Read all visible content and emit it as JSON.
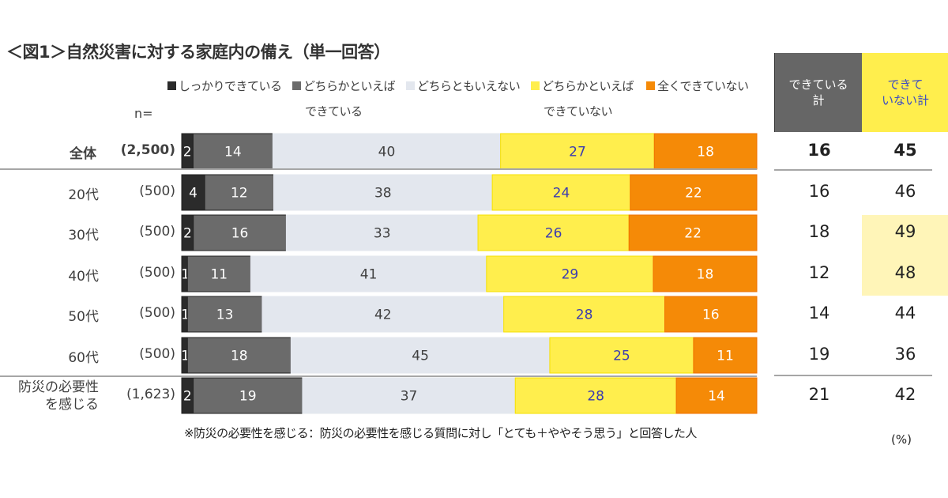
{
  "chart_data": {
    "type": "bar",
    "orientation": "horizontal-stacked-100",
    "title": "＜図1＞自然災害に対する家庭内の備え（単一回答）",
    "n_label": "n=",
    "unit_label": "(%)",
    "note": "※防災の必要性を感じる：防災の必要性を感じる質問に対し「とても＋ややそう思う」と回答した人",
    "legend_position": "top",
    "series": [
      {
        "name": "しっかりできている",
        "name_line2": "",
        "color": "#2b2b2b",
        "label_color": "#ffffff"
      },
      {
        "name": "どちらかといえば",
        "name_line2": "できている",
        "color": "#6b6b6b",
        "label_color": "#ffffff"
      },
      {
        "name": "どちらともいえない",
        "name_line2": "",
        "color": "#e3e7ee",
        "label_color": "#404040"
      },
      {
        "name": "どちらかといえば",
        "name_line2": "できていない",
        "color": "#ffee4d",
        "label_color": "#3b3bb0"
      },
      {
        "name": "全くできていない",
        "name_line2": "",
        "color": "#f58a07",
        "label_color": "#ffffff"
      }
    ],
    "rows": [
      {
        "label": "全体",
        "n": "(2,500)",
        "bold": true,
        "values": [
          2,
          14,
          40,
          27,
          18
        ],
        "done_total": 16,
        "not_done_total": 45
      },
      {
        "label": "20代",
        "n": "(500)",
        "bold": false,
        "values": [
          4,
          12,
          38,
          24,
          22
        ],
        "done_total": 16,
        "not_done_total": 46
      },
      {
        "label": "30代",
        "n": "(500)",
        "bold": false,
        "values": [
          2,
          16,
          33,
          26,
          22
        ],
        "done_total": 18,
        "not_done_total": 49
      },
      {
        "label": "40代",
        "n": "(500)",
        "bold": false,
        "values": [
          1,
          11,
          41,
          29,
          18
        ],
        "done_total": 12,
        "not_done_total": 48
      },
      {
        "label": "50代",
        "n": "(500)",
        "bold": false,
        "values": [
          1,
          13,
          42,
          28,
          16
        ],
        "done_total": 14,
        "not_done_total": 44
      },
      {
        "label": "60代",
        "n": "(500)",
        "bold": false,
        "values": [
          1,
          18,
          45,
          25,
          11
        ],
        "done_total": 19,
        "not_done_total": 36
      },
      {
        "label": "防災の必要性",
        "label_line2": "を感じる",
        "n": "(1,623)",
        "bold": false,
        "values": [
          2,
          19,
          37,
          28,
          14
        ],
        "done_total": 21,
        "not_done_total": 42
      }
    ],
    "summary_headers": {
      "done": "できている計",
      "done_line1": "できている",
      "done_line2": "計",
      "not_done_line1": "できて",
      "not_done_line2": "いない計"
    },
    "highlighted_not_done_rows": [
      "30代",
      "40代"
    ],
    "xlim": [
      0,
      100
    ]
  }
}
